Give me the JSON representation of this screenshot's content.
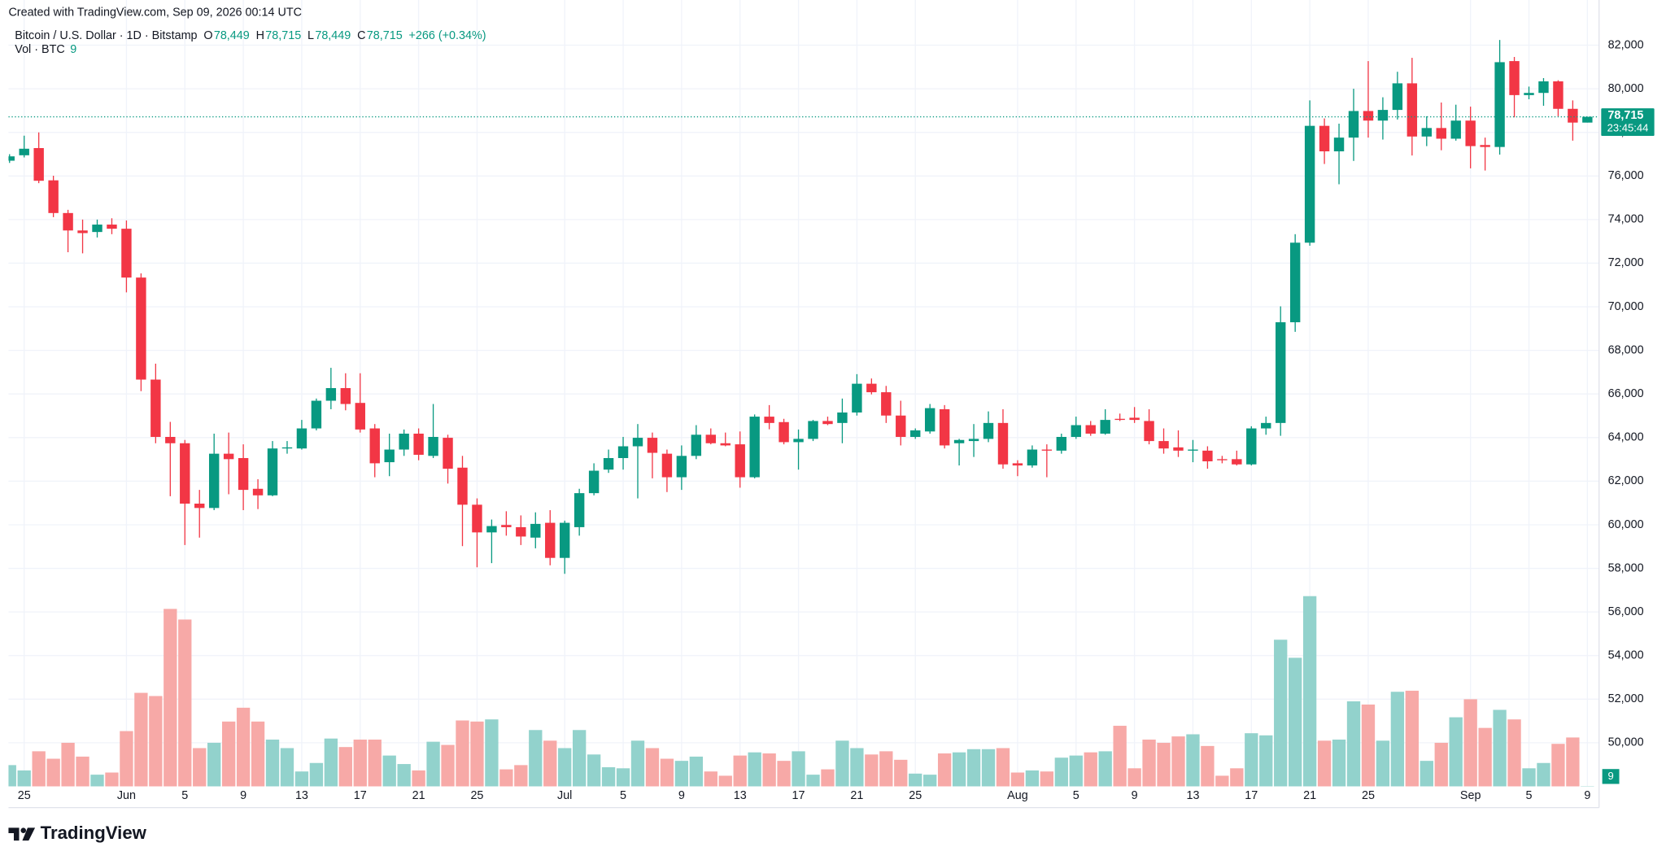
{
  "chart_data": {
    "type": "candlestick",
    "watermark": "Created with TradingView.com, Sep 09, 2026 00:14 UTC",
    "symbol": "Bitcoin / U.S. Dollar · 1D · Bitstamp",
    "legend": [
      {
        "key": "O",
        "value": "78,449"
      },
      {
        "key": "H",
        "value": "78,715"
      },
      {
        "key": "L",
        "value": "78,449"
      },
      {
        "key": "C",
        "value": "78,715"
      }
    ],
    "change": "+266 (+0.34%)",
    "volume_title": "Vol · BTC",
    "price_label": "78,715",
    "countdown": "23:45:44",
    "brand": "TradingView",
    "x": [
      "2026-05-24",
      "2026-05-25",
      "2026-05-26",
      "2026-05-27",
      "2026-05-28",
      "2026-05-29",
      "2026-05-30",
      "2026-05-31",
      "2026-06-01",
      "2026-06-02",
      "2026-06-03",
      "2026-06-04",
      "2026-06-05",
      "2026-06-06",
      "2026-06-07",
      "2026-06-08",
      "2026-06-09",
      "2026-06-10",
      "2026-06-11",
      "2026-06-12",
      "2026-06-13",
      "2026-06-14",
      "2026-06-15",
      "2026-06-16",
      "2026-06-17",
      "2026-06-18",
      "2026-06-19",
      "2026-06-20",
      "2026-06-21",
      "2026-06-22",
      "2026-06-23",
      "2026-06-24",
      "2026-06-25",
      "2026-06-26",
      "2026-06-27",
      "2026-06-28",
      "2026-06-29",
      "2026-06-30",
      "2026-07-01",
      "2026-07-02",
      "2026-07-03",
      "2026-07-04",
      "2026-07-05",
      "2026-07-06",
      "2026-07-07",
      "2026-07-08",
      "2026-07-09",
      "2026-07-10",
      "2026-07-11",
      "2026-07-12",
      "2026-07-13",
      "2026-07-14",
      "2026-07-15",
      "2026-07-16",
      "2026-07-17",
      "2026-07-18",
      "2026-07-19",
      "2026-07-20",
      "2026-07-21",
      "2026-07-22",
      "2026-07-23",
      "2026-07-24",
      "2026-07-25",
      "2026-07-26",
      "2026-07-27",
      "2026-07-28",
      "2026-07-29",
      "2026-07-30",
      "2026-07-31",
      "2026-08-01",
      "2026-08-02",
      "2026-08-03",
      "2026-08-04",
      "2026-08-05",
      "2026-08-06",
      "2026-08-07",
      "2026-08-08",
      "2026-08-09",
      "2026-08-10",
      "2026-08-11",
      "2026-08-12",
      "2026-08-13",
      "2026-08-14",
      "2026-08-15",
      "2026-08-16",
      "2026-08-17",
      "2026-08-18",
      "2026-08-19",
      "2026-08-20",
      "2026-08-21",
      "2026-08-22",
      "2026-08-23",
      "2026-08-24",
      "2026-08-25",
      "2026-08-26",
      "2026-08-27",
      "2026-08-28",
      "2026-08-29",
      "2026-08-30",
      "2026-08-31",
      "2026-09-01",
      "2026-09-02",
      "2026-09-03",
      "2026-09-04",
      "2026-09-05",
      "2026-09-06",
      "2026-09-07",
      "2026-09-08",
      "2026-09-09"
    ],
    "series": {
      "open": [
        76700,
        76950,
        77280,
        75800,
        74300,
        73500,
        73430,
        73770,
        73580,
        71340,
        66660,
        64030,
        63740,
        60970,
        60770,
        63260,
        63060,
        61650,
        61350,
        63500,
        63500,
        64420,
        65690,
        66270,
        65590,
        64420,
        62870,
        63450,
        64180,
        63160,
        63990,
        62620,
        60920,
        59650,
        59990,
        59890,
        59410,
        60090,
        58480,
        59890,
        61450,
        62530,
        63060,
        63600,
        63990,
        63260,
        62180,
        63160,
        64130,
        63740,
        63690,
        62180,
        64960,
        64710,
        63790,
        63940,
        64760,
        64670,
        65150,
        66470,
        66080,
        65010,
        64030,
        64280,
        65300,
        63740,
        63840,
        63940,
        64670,
        62820,
        62720,
        63450,
        63400,
        64030,
        64570,
        64180,
        64860,
        64910,
        64760,
        63840,
        63550,
        63400,
        63400,
        63010,
        63010,
        62770,
        64420,
        64670,
        69290,
        72940,
        78300,
        77130,
        77760,
        78980,
        78540,
        79030,
        80250,
        77810,
        78200,
        77710,
        78540,
        77420,
        77330,
        81270,
        79710,
        79810,
        80340,
        79080,
        78449
      ],
      "high": [
        77000,
        77850,
        78000,
        76010,
        74450,
        74000,
        74000,
        74060,
        73960,
        71530,
        67390,
        64720,
        63890,
        61600,
        64180,
        64230,
        63690,
        62090,
        63840,
        63840,
        64810,
        65790,
        67200,
        66950,
        66950,
        64620,
        64180,
        64370,
        64420,
        65540,
        64130,
        63160,
        61210,
        60240,
        60620,
        60430,
        60570,
        60670,
        60190,
        61650,
        62820,
        63450,
        64030,
        64620,
        64230,
        63450,
        63640,
        64570,
        64420,
        64230,
        64280,
        65060,
        65490,
        64860,
        64370,
        64810,
        64960,
        65790,
        66910,
        66710,
        66370,
        65690,
        64420,
        65540,
        65490,
        63940,
        64620,
        65200,
        65300,
        62960,
        63640,
        63690,
        64180,
        64960,
        64760,
        65300,
        65100,
        65400,
        65300,
        64420,
        64330,
        63890,
        63600,
        63160,
        63400,
        64520,
        64960,
        70020,
        73330,
        79470,
        78640,
        78400,
        80000,
        81270,
        79610,
        80780,
        81420,
        78740,
        79370,
        79270,
        79180,
        77760,
        82240,
        81460,
        80100,
        80490,
        80390,
        79470,
        78715
      ],
      "low": [
        76600,
        76850,
        75670,
        74110,
        72500,
        72450,
        73180,
        73330,
        70660,
        66130,
        63740,
        61310,
        59070,
        59410,
        60670,
        61400,
        60670,
        60720,
        61310,
        63260,
        63450,
        64330,
        65300,
        65250,
        64230,
        62180,
        62230,
        63160,
        62960,
        63060,
        61890,
        59020,
        58050,
        58240,
        59500,
        59070,
        58920,
        58140,
        57750,
        59500,
        61350,
        62380,
        62530,
        61210,
        62130,
        61500,
        61600,
        63010,
        63690,
        63600,
        61700,
        62130,
        64380,
        63690,
        62530,
        63840,
        64570,
        63740,
        65010,
        65980,
        64670,
        63640,
        63940,
        64180,
        63500,
        62720,
        63110,
        63790,
        62570,
        62230,
        62620,
        62180,
        63260,
        63940,
        64080,
        64130,
        64760,
        64670,
        63690,
        63260,
        63110,
        62870,
        62570,
        62820,
        62720,
        62720,
        64130,
        64080,
        68850,
        72800,
        76550,
        75620,
        76690,
        77760,
        77670,
        78590,
        76940,
        77370,
        77180,
        77620,
        76350,
        76250,
        76980,
        78690,
        79520,
        79220,
        78740,
        77620,
        78449
      ],
      "close": [
        76900,
        77250,
        75780,
        74300,
        73500,
        73380,
        73770,
        73580,
        71340,
        66660,
        64030,
        63740,
        60970,
        60770,
        63260,
        63010,
        61600,
        61350,
        63500,
        63550,
        64420,
        65690,
        66270,
        65540,
        64370,
        62820,
        63450,
        64180,
        63210,
        64030,
        62570,
        60920,
        59650,
        59940,
        59890,
        59460,
        60040,
        58480,
        60090,
        61450,
        62480,
        63060,
        63600,
        63990,
        63300,
        62180,
        63160,
        64130,
        63740,
        63640,
        62180,
        64960,
        64670,
        63790,
        63940,
        64760,
        64620,
        65150,
        66470,
        66080,
        65010,
        64030,
        64330,
        65350,
        63640,
        63890,
        63940,
        64670,
        62770,
        62720,
        63450,
        63400,
        64030,
        64570,
        64180,
        64810,
        64810,
        64810,
        63840,
        63500,
        63400,
        63450,
        62910,
        62960,
        62770,
        64420,
        64670,
        69290,
        72940,
        78300,
        77130,
        77760,
        78980,
        78540,
        79030,
        80250,
        77810,
        78200,
        77710,
        78540,
        77370,
        77330,
        81220,
        79710,
        79810,
        80340,
        79080,
        78449,
        78715
      ],
      "volume": [
        600,
        450,
        990,
        780,
        1230,
        840,
        330,
        390,
        1560,
        2640,
        2550,
        5010,
        4710,
        1080,
        1230,
        1830,
        2220,
        1830,
        1320,
        1080,
        420,
        660,
        1350,
        1110,
        1320,
        1320,
        870,
        630,
        450,
        1260,
        1170,
        1860,
        1830,
        1890,
        480,
        600,
        1590,
        1290,
        1080,
        1590,
        900,
        540,
        510,
        1290,
        1080,
        780,
        720,
        840,
        420,
        300,
        870,
        960,
        930,
        720,
        990,
        330,
        480,
        1290,
        1080,
        900,
        990,
        750,
        360,
        330,
        930,
        960,
        1050,
        1050,
        1080,
        390,
        450,
        420,
        810,
        870,
        960,
        990,
        1710,
        510,
        1320,
        1230,
        1410,
        1470,
        1140,
        300,
        510,
        1500,
        1440,
        4140,
        3630,
        5370,
        1290,
        1320,
        2400,
        2310,
        1290,
        2670,
        2700,
        720,
        1230,
        1950,
        2460,
        1650,
        2160,
        1890,
        510,
        660,
        1200,
        1380,
        9
      ]
    },
    "up_color": "#089981",
    "down_color": "#f23645",
    "volume_up_color": "#92d2cc",
    "volume_down_color": "#f7a9a7",
    "ylim": [
      48000,
      83000
    ],
    "yticks": [
      {
        "value": 50000,
        "label": "50,000"
      },
      {
        "value": 52000,
        "label": "52,000"
      },
      {
        "value": 54000,
        "label": "54,000"
      },
      {
        "value": 56000,
        "label": "56,000"
      },
      {
        "value": 58000,
        "label": "58,000"
      },
      {
        "value": 60000,
        "label": "60,000"
      },
      {
        "value": 62000,
        "label": "62,000"
      },
      {
        "value": 64000,
        "label": "64,000"
      },
      {
        "value": 66000,
        "label": "66,000"
      },
      {
        "value": 68000,
        "label": "68,000"
      },
      {
        "value": 70000,
        "label": "70,000"
      },
      {
        "value": 72000,
        "label": "72,000"
      },
      {
        "value": 74000,
        "label": "74,000"
      },
      {
        "value": 76000,
        "label": "76,000"
      },
      {
        "value": 78000,
        "label": "78,000"
      },
      {
        "value": 80000,
        "label": "80,000"
      },
      {
        "value": 82000,
        "label": "82,000"
      }
    ],
    "vlim": [
      0,
      6000
    ],
    "xticks": [
      {
        "value": "2026-05-25",
        "label": "25"
      },
      {
        "value": "2026-06-01",
        "label": "Jun"
      },
      {
        "value": "2026-06-05",
        "label": "5"
      },
      {
        "value": "2026-06-09",
        "label": "9"
      },
      {
        "value": "2026-06-13",
        "label": "13"
      },
      {
        "value": "2026-06-17",
        "label": "17"
      },
      {
        "value": "2026-06-21",
        "label": "21"
      },
      {
        "value": "2026-06-25",
        "label": "25"
      },
      {
        "value": "2026-07-01",
        "label": "Jul"
      },
      {
        "value": "2026-07-05",
        "label": "5"
      },
      {
        "value": "2026-07-09",
        "label": "9"
      },
      {
        "value": "2026-07-13",
        "label": "13"
      },
      {
        "value": "2026-07-17",
        "label": "17"
      },
      {
        "value": "2026-07-21",
        "label": "21"
      },
      {
        "value": "2026-07-25",
        "label": "25"
      },
      {
        "value": "2026-08-01",
        "label": "Aug"
      },
      {
        "value": "2026-08-05",
        "label": "5"
      },
      {
        "value": "2026-08-09",
        "label": "9"
      },
      {
        "value": "2026-08-13",
        "label": "13"
      },
      {
        "value": "2026-08-17",
        "label": "17"
      },
      {
        "value": "2026-08-21",
        "label": "21"
      },
      {
        "value": "2026-08-25",
        "label": "25"
      },
      {
        "value": "2026-09-01",
        "label": "Sep"
      },
      {
        "value": "2026-09-05",
        "label": "5"
      },
      {
        "value": "2026-09-09",
        "label": "9"
      }
    ],
    "grid": true
  }
}
